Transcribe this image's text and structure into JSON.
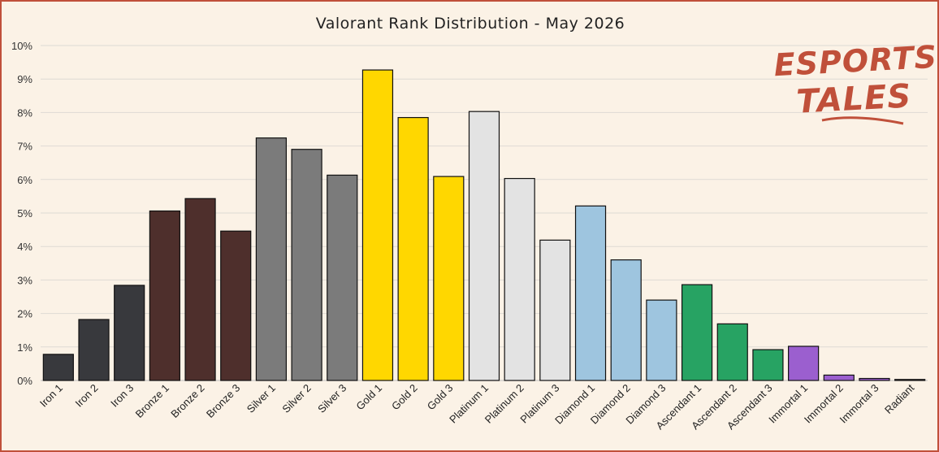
{
  "chart_data": {
    "type": "bar",
    "title": "Valorant Rank Distribution - May 2026",
    "xlabel": "",
    "ylabel": "",
    "ylim": [
      0,
      10
    ],
    "y_unit": "%",
    "yticks": [
      "0%",
      "1%",
      "2%",
      "3%",
      "4%",
      "5%",
      "6%",
      "7%",
      "8%",
      "9%",
      "10%"
    ],
    "grid": true,
    "legend": "none",
    "categories": [
      "Iron 1",
      "Iron 2",
      "Iron 3",
      "Bronze 1",
      "Bronze 2",
      "Bronze 3",
      "Silver 1",
      "Silver 2",
      "Silver 3",
      "Gold 1",
      "Gold 2",
      "Gold 3",
      "Platinum 1",
      "Platinum 2",
      "Platinum 3",
      "Diamond 1",
      "Diamond 2",
      "Diamond 3",
      "Ascendant 1",
      "Ascendant 2",
      "Ascendant 3",
      "Immortal 1",
      "Immortal 2",
      "Immortal 3",
      "Radiant"
    ],
    "values": [
      0.78,
      1.82,
      2.84,
      5.06,
      5.43,
      4.46,
      7.24,
      6.9,
      6.13,
      9.27,
      7.85,
      6.09,
      8.03,
      6.03,
      4.19,
      5.21,
      3.6,
      2.4,
      2.86,
      1.69,
      0.92,
      1.02,
      0.16,
      0.06,
      0.03
    ],
    "colors": [
      "#38393d",
      "#38393d",
      "#38393d",
      "#4e2f2c",
      "#4e2f2c",
      "#4e2f2c",
      "#7b7b7b",
      "#7b7b7b",
      "#7b7b7b",
      "#ffd700",
      "#ffd700",
      "#ffd700",
      "#e3e3e3",
      "#e3e3e3",
      "#e3e3e3",
      "#9ec5df",
      "#9ec5df",
      "#9ec5df",
      "#27a363",
      "#27a363",
      "#27a363",
      "#9b5fcf",
      "#9b5fcf",
      "#9b5fcf",
      "#c9a9a9"
    ]
  },
  "logo": {
    "line1": "ESPORTS",
    "line2": "TALES",
    "color": "#c0503a"
  }
}
